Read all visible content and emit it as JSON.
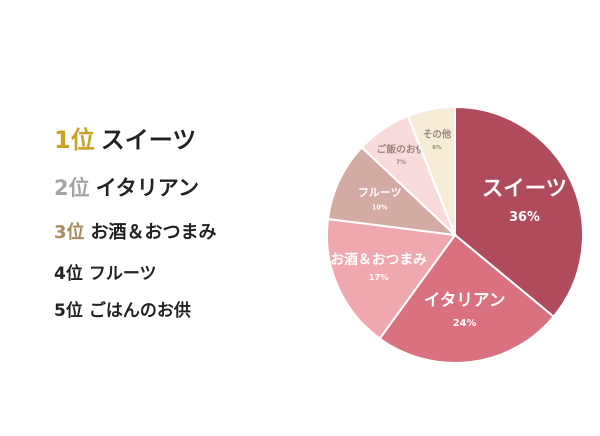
{
  "ranking": [
    {
      "rank": "1位",
      "name": "スイーツ"
    },
    {
      "rank": "2位",
      "name": "イタリアン"
    },
    {
      "rank": "3位",
      "name": "お酒＆おつまみ"
    },
    {
      "rank": "4位",
      "name": "フルーツ"
    },
    {
      "rank": "5位",
      "name": "ごはんのお供"
    }
  ],
  "chart_data": {
    "type": "pie",
    "categories": [
      "スイーツ",
      "イタリアン",
      "お酒＆おつまみ",
      "フルーツ",
      "ご飯のお供",
      "その他"
    ],
    "values": [
      36,
      24,
      17,
      10,
      7,
      6
    ],
    "value_labels": [
      "36%",
      "24%",
      "17%",
      "10%",
      "7%",
      "6%"
    ],
    "colors": [
      "#b04b5b",
      "#d9717f",
      "#efa9ae",
      "#d3aba2",
      "#f8dcdc",
      "#f6ecd6"
    ]
  }
}
